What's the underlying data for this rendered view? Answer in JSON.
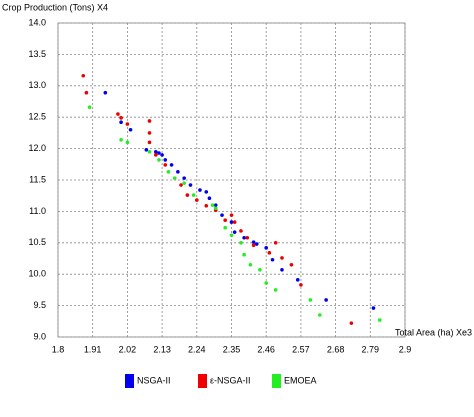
{
  "chart_data": {
    "type": "scatter",
    "title": "Crop Production (Tons) X4",
    "x_label": "Total Area (ha) Xe3",
    "xlim": [
      1.8,
      2.9
    ],
    "xticks": [
      1.8,
      1.91,
      2.02,
      2.13,
      2.24,
      2.35,
      2.46,
      2.57,
      2.68,
      2.79,
      2.9
    ],
    "ylim": [
      9.0,
      14.0
    ],
    "yticks": [
      {
        "value": 9.0,
        "label": "9.0"
      },
      9.5,
      {
        "value": 10.0,
        "label": "10.0"
      },
      10.5,
      {
        "value": 11.0,
        "label": "11.0"
      },
      11.5,
      {
        "value": 12.0,
        "label": "12.0"
      },
      12.5,
      {
        "value": 13.0,
        "label": "13.0"
      },
      13.5,
      {
        "value": 14.0,
        "label": "14.0"
      }
    ],
    "grid": true,
    "series": [
      {
        "name": "NSGA-II",
        "color": "#0000ee",
        "x": [
          1.95,
          2.0,
          2.03,
          2.08,
          2.11,
          2.12,
          2.13,
          2.14,
          2.16,
          2.18,
          2.2,
          2.22,
          2.25,
          2.27,
          2.28,
          2.3,
          2.32,
          2.35,
          2.36,
          2.39,
          2.42,
          2.43,
          2.46,
          2.48,
          2.51,
          2.56,
          2.65,
          2.8
        ],
        "values": [
          12.89,
          12.42,
          12.3,
          11.98,
          11.95,
          11.93,
          11.9,
          11.82,
          11.74,
          11.63,
          11.53,
          11.42,
          11.34,
          11.31,
          11.21,
          11.1,
          10.94,
          10.83,
          10.67,
          10.58,
          10.51,
          10.48,
          10.42,
          10.23,
          10.07,
          9.91,
          9.59,
          9.46
        ]
      },
      {
        "name": "ε-NSGA-II",
        "color": "#ee0000",
        "x": [
          1.88,
          1.89,
          1.99,
          2.0,
          2.02,
          2.09,
          2.09,
          2.09,
          2.11,
          2.14,
          2.19,
          2.21,
          2.24,
          2.27,
          2.3,
          2.33,
          2.35,
          2.36,
          2.38,
          2.4,
          2.42,
          2.47,
          2.49,
          2.51,
          2.54,
          2.57,
          2.73
        ],
        "values": [
          13.16,
          12.89,
          12.55,
          12.49,
          12.39,
          12.44,
          12.25,
          12.1,
          11.9,
          11.74,
          11.42,
          11.26,
          11.18,
          11.09,
          11.02,
          10.86,
          10.94,
          10.83,
          10.69,
          10.58,
          10.46,
          10.34,
          10.5,
          10.26,
          10.15,
          9.83,
          9.22
        ]
      },
      {
        "name": "EMOEA",
        "color": "#22ee22",
        "x": [
          1.9,
          2.0,
          2.02,
          2.09,
          2.12,
          2.15,
          2.17,
          2.2,
          2.23,
          2.29,
          2.3,
          2.33,
          2.35,
          2.38,
          2.39,
          2.41,
          2.44,
          2.46,
          2.49,
          2.6,
          2.63,
          2.82
        ],
        "values": [
          12.66,
          12.14,
          12.1,
          11.95,
          11.82,
          11.63,
          11.53,
          11.45,
          11.26,
          11.1,
          11.05,
          10.74,
          10.62,
          10.5,
          10.31,
          10.15,
          10.07,
          9.86,
          9.75,
          9.59,
          9.35,
          9.27
        ]
      }
    ]
  }
}
